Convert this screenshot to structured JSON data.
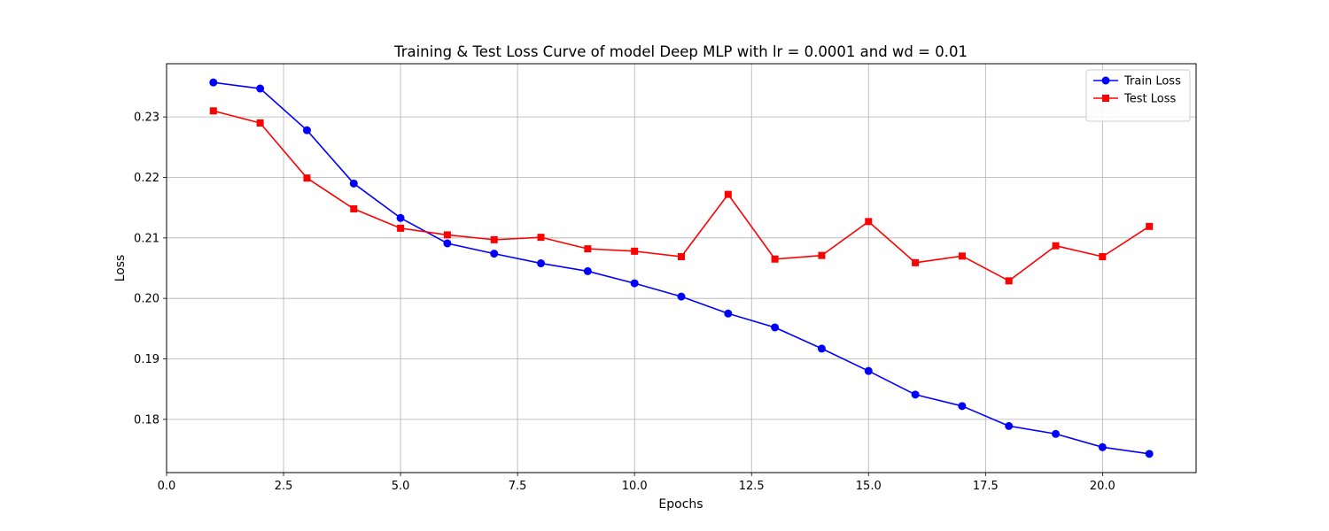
{
  "chart_data": {
    "type": "line",
    "title": "Training & Test Loss Curve of model Deep MLP with lr = 0.0001 and wd = 0.01",
    "xlabel": "Epochs",
    "ylabel": "Loss",
    "xlim": [
      0,
      22
    ],
    "ylim": [
      0.1712,
      0.2388
    ],
    "x_ticks": [
      0.0,
      2.5,
      5.0,
      7.5,
      10.0,
      12.5,
      15.0,
      17.5,
      20.0
    ],
    "x_tick_labels": [
      "0.0",
      "2.5",
      "5.0",
      "7.5",
      "10.0",
      "12.5",
      "15.0",
      "17.5",
      "20.0"
    ],
    "y_ticks": [
      0.18,
      0.19,
      0.2,
      0.21,
      0.22,
      0.23
    ],
    "y_tick_labels": [
      "0.18",
      "0.19",
      "0.20",
      "0.21",
      "0.22",
      "0.23"
    ],
    "grid": true,
    "legend_position": "top-right",
    "x": [
      1,
      2,
      3,
      4,
      5,
      6,
      7,
      8,
      9,
      10,
      11,
      12,
      13,
      14,
      15,
      16,
      17,
      18,
      19,
      20,
      21
    ],
    "series": [
      {
        "name": "Train Loss",
        "color": "#0000ff",
        "marker": "circle",
        "values": [
          0.2357,
          0.2347,
          0.2278,
          0.219,
          0.2133,
          0.2091,
          0.2074,
          0.2058,
          0.2045,
          0.2025,
          0.2003,
          0.1975,
          0.1952,
          0.1917,
          0.188,
          0.1841,
          0.1822,
          0.1789,
          0.1776,
          0.1754,
          0.1743
        ]
      },
      {
        "name": "Test Loss",
        "color": "#ff0000",
        "marker": "square",
        "values": [
          0.231,
          0.229,
          0.2199,
          0.2148,
          0.2116,
          0.2105,
          0.2097,
          0.2101,
          0.2082,
          0.2078,
          0.2069,
          0.2172,
          0.2065,
          0.2071,
          0.2127,
          0.2059,
          0.207,
          0.2029,
          0.2087,
          0.2069,
          0.2119
        ]
      }
    ]
  }
}
